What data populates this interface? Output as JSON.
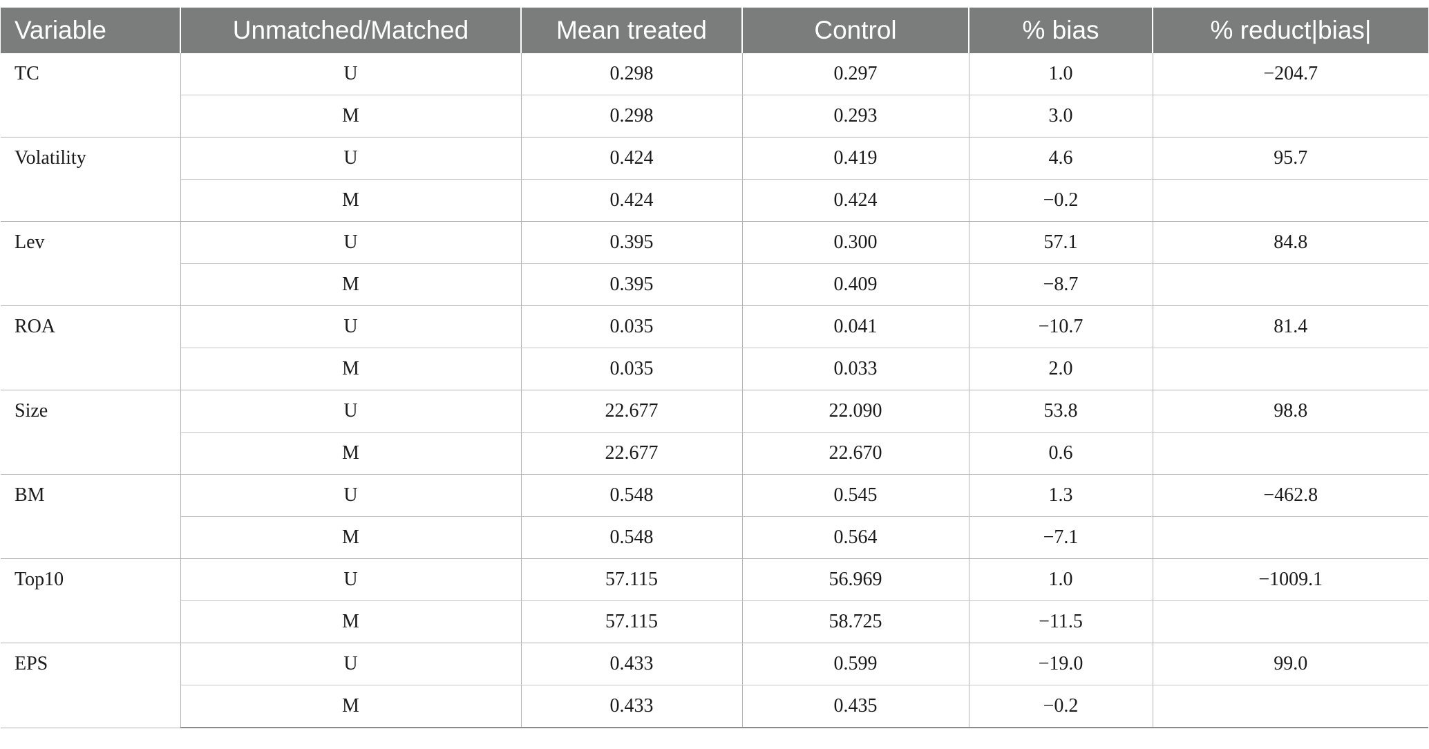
{
  "table": {
    "headers": [
      "Variable",
      "Unmatched/Matched",
      "Mean treated",
      "Control",
      "% bias",
      "% reduct|bias|"
    ],
    "groups": [
      {
        "variable": "TC",
        "rows": [
          {
            "um": "U",
            "mean_treated": "0.298",
            "control": "0.297",
            "bias": "1.0",
            "reduct": "−204.7"
          },
          {
            "um": "M",
            "mean_treated": "0.298",
            "control": "0.293",
            "bias": "3.0",
            "reduct": ""
          }
        ]
      },
      {
        "variable": "Volatility",
        "rows": [
          {
            "um": "U",
            "mean_treated": "0.424",
            "control": "0.419",
            "bias": "4.6",
            "reduct": "95.7"
          },
          {
            "um": "M",
            "mean_treated": "0.424",
            "control": "0.424",
            "bias": "−0.2",
            "reduct": ""
          }
        ]
      },
      {
        "variable": "Lev",
        "rows": [
          {
            "um": "U",
            "mean_treated": "0.395",
            "control": "0.300",
            "bias": "57.1",
            "reduct": "84.8"
          },
          {
            "um": "M",
            "mean_treated": "0.395",
            "control": "0.409",
            "bias": "−8.7",
            "reduct": ""
          }
        ]
      },
      {
        "variable": "ROA",
        "rows": [
          {
            "um": "U",
            "mean_treated": "0.035",
            "control": "0.041",
            "bias": "−10.7",
            "reduct": "81.4"
          },
          {
            "um": "M",
            "mean_treated": "0.035",
            "control": "0.033",
            "bias": "2.0",
            "reduct": ""
          }
        ]
      },
      {
        "variable": "Size",
        "rows": [
          {
            "um": "U",
            "mean_treated": "22.677",
            "control": "22.090",
            "bias": "53.8",
            "reduct": "98.8"
          },
          {
            "um": "M",
            "mean_treated": "22.677",
            "control": "22.670",
            "bias": "0.6",
            "reduct": ""
          }
        ]
      },
      {
        "variable": "BM",
        "rows": [
          {
            "um": "U",
            "mean_treated": "0.548",
            "control": "0.545",
            "bias": "1.3",
            "reduct": "−462.8"
          },
          {
            "um": "M",
            "mean_treated": "0.548",
            "control": "0.564",
            "bias": "−7.1",
            "reduct": ""
          }
        ]
      },
      {
        "variable": "Top10",
        "rows": [
          {
            "um": "U",
            "mean_treated": "57.115",
            "control": "56.969",
            "bias": "1.0",
            "reduct": "−1009.1"
          },
          {
            "um": "M",
            "mean_treated": "57.115",
            "control": "58.725",
            "bias": "−11.5",
            "reduct": ""
          }
        ]
      },
      {
        "variable": "EPS",
        "rows": [
          {
            "um": "U",
            "mean_treated": "0.433",
            "control": "0.599",
            "bias": "−19.0",
            "reduct": "99.0"
          },
          {
            "um": "M",
            "mean_treated": "0.433",
            "control": "0.435",
            "bias": "−0.2",
            "reduct": ""
          }
        ]
      }
    ]
  }
}
